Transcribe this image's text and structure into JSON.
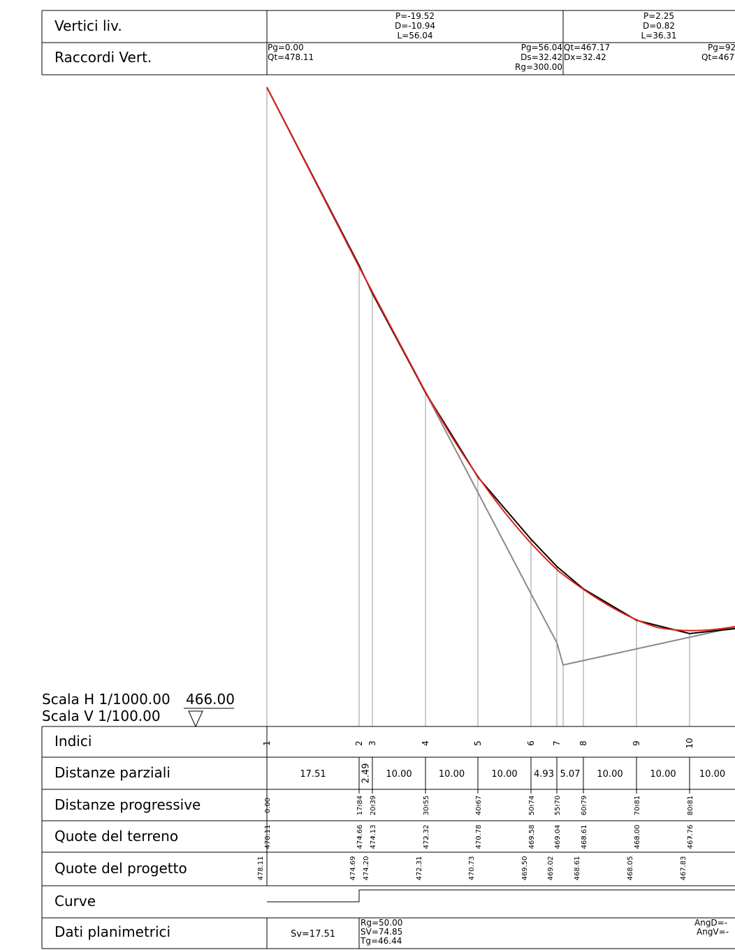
{
  "top_table": {
    "rows": [
      "Vertici liv.",
      "Raccordi Vert."
    ],
    "vertices": [
      [
        "P=-19.52",
        "D=-10.94",
        "L=56.04"
      ],
      [
        "P=2.25",
        "D=0.82",
        "L=36.31"
      ]
    ],
    "raccordi": {
      "start": [
        "Pg=0.00",
        "Qt=478.11"
      ],
      "mid_right": [
        "Pg=56.04",
        "Ds=32.42",
        "Rg=300.00"
      ],
      "mid_left": [
        "Qt=467.17",
        "Dx=32.42"
      ],
      "end": [
        "Pg=92",
        "Qt=467"
      ]
    }
  },
  "scale": {
    "h": "Scala H  1/1000.00",
    "v": "Scala V  1/100.00",
    "datum": "466.00"
  },
  "bottom_table": {
    "rows": [
      "Indici",
      "Distanze parziali",
      "Distanze progressive",
      "Quote del terreno",
      "Quote del progetto",
      "Curve",
      "Dati planimetrici"
    ],
    "indices": [
      "1",
      "2",
      "3",
      "4",
      "5",
      "6",
      "7",
      "8",
      "9",
      "10"
    ],
    "partial_distances": [
      "17.51",
      "2.49",
      "10.00",
      "10.00",
      "10.00",
      "4.93",
      "5.07",
      "10.00",
      "10.00",
      "10.00"
    ],
    "progressive_distances": [
      "0.00",
      "17.84",
      "20.39",
      "30.55",
      "40.67",
      "50.74",
      "55.70",
      "60.79",
      "70.81",
      "80.81"
    ],
    "terrain_elevations": [
      "478.11",
      "474.66",
      "474.13",
      "472.32",
      "470.78",
      "469.58",
      "469.04",
      "468.61",
      "468.00",
      "467.76"
    ],
    "project_elevations": [
      "478.11",
      "474.69",
      "474.20",
      "472.31",
      "470.73",
      "469.50",
      "469.02",
      "468.61",
      "468.05",
      "467.83"
    ],
    "planimetric": {
      "sv": "Sv=17.51",
      "curve": [
        "Rg=50.00",
        "SV=74.85",
        "Tg=46.44"
      ],
      "end": [
        "AngD=-",
        "AngV=-"
      ]
    }
  },
  "colors": {
    "terrain": "#000000",
    "project": "#e0201c",
    "tangent": "#8a8a8a",
    "grid": "#9a9a9a"
  }
}
